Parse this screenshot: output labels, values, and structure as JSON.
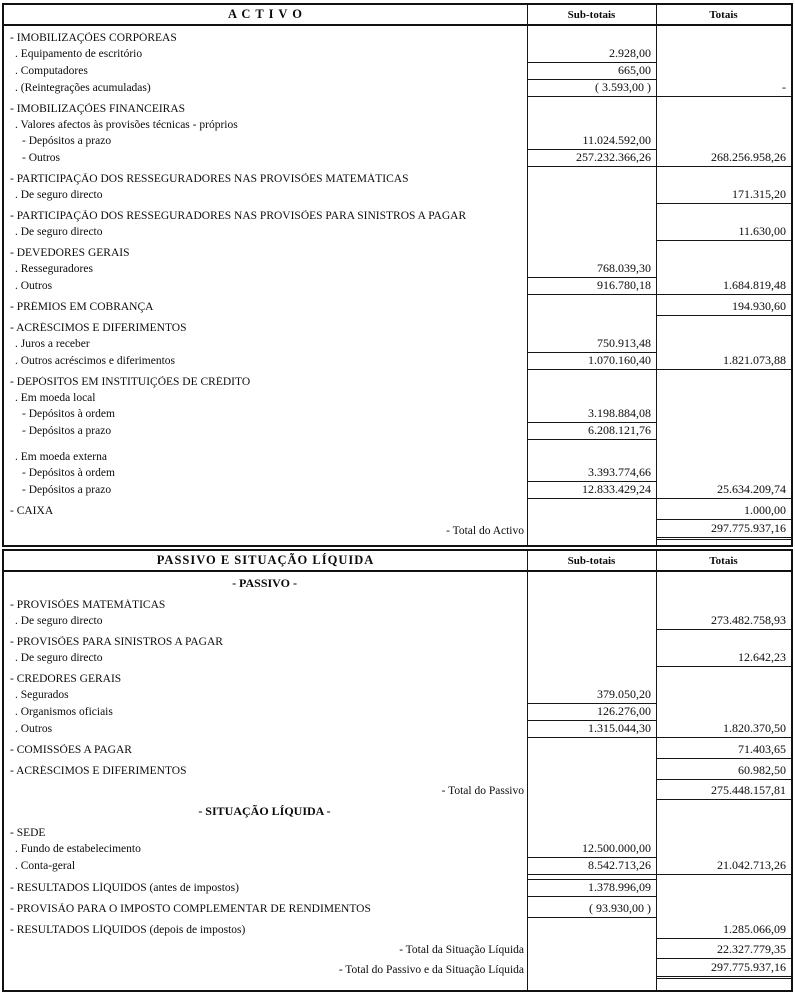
{
  "document": {
    "type": "balance-sheet-scan",
    "sections": [
      {
        "id": "activo",
        "title": "A C T I V O",
        "col_subtotals": "Sub-totais",
        "col_totals": "Totais",
        "rows": [
          {
            "kind": "section",
            "indent": 0,
            "label": "- IMOBILIZAÇÕES CORPÓREAS",
            "sub": "",
            "tot": ""
          },
          {
            "kind": "item",
            "indent": 1,
            "label": ". Equipamento de escritório",
            "sub": "2.928,00",
            "tot": "",
            "subLine": true
          },
          {
            "kind": "item",
            "indent": 1,
            "label": ". Computadores",
            "sub": "665,00",
            "tot": "",
            "subLine": true
          },
          {
            "kind": "item",
            "indent": 1,
            "label": ". (Reintegrações acumuladas)",
            "sub": "( 3.593,00 )",
            "tot": "-",
            "subLine": true,
            "totLine": true
          },
          {
            "kind": "section",
            "indent": 0,
            "label": "- IMOBILIZAÇÕES FINANCEIRAS",
            "sub": "",
            "tot": ""
          },
          {
            "kind": "item",
            "indent": 1,
            "label": ". Valores afectos às provisões técnicas - próprios",
            "sub": "",
            "tot": ""
          },
          {
            "kind": "item",
            "indent": 2,
            "label": "- Depósitos a prazo",
            "sub": "11.024.592,00",
            "tot": "",
            "subLine": true
          },
          {
            "kind": "item",
            "indent": 2,
            "label": "- Outros",
            "sub": "257.232.366,26",
            "tot": "268.256.958,26",
            "subLine": true,
            "totLine": true
          },
          {
            "kind": "section",
            "indent": 0,
            "label": "- PARTICIPAÇÃO DOS RESSEGURADORES NAS PROVISÕES MATEMÁTICAS",
            "sub": "",
            "tot": ""
          },
          {
            "kind": "item",
            "indent": 1,
            "label": ". De seguro directo",
            "sub": "",
            "tot": "171.315,20",
            "totLine": true
          },
          {
            "kind": "section",
            "indent": 0,
            "label": "- PARTICIPAÇÃO DOS RESSEGURADORES NAS PROVISÕES PARA SINISTROS A PAGAR",
            "sub": "",
            "tot": ""
          },
          {
            "kind": "item",
            "indent": 1,
            "label": ". De seguro directo",
            "sub": "",
            "tot": "11.630,00",
            "totLine": true
          },
          {
            "kind": "section",
            "indent": 0,
            "label": "- DEVEDORES GERAIS",
            "sub": "",
            "tot": ""
          },
          {
            "kind": "item",
            "indent": 1,
            "label": ". Resseguradores",
            "sub": "768.039,30",
            "tot": "",
            "subLine": true
          },
          {
            "kind": "item",
            "indent": 1,
            "label": ". Outros",
            "sub": "916.780,18",
            "tot": "1.684.819,48",
            "subLine": true,
            "totLine": true
          },
          {
            "kind": "section",
            "indent": 0,
            "label": "- PRÉMIOS EM COBRANÇA",
            "sub": "",
            "tot": "194.930,60",
            "totLine": true
          },
          {
            "kind": "section",
            "indent": 0,
            "label": "- ACRÉSCIMOS  E  DIFERIMENTOS",
            "sub": "",
            "tot": ""
          },
          {
            "kind": "item",
            "indent": 1,
            "label": ". Juros a receber",
            "sub": "750.913,48",
            "tot": "",
            "subLine": true
          },
          {
            "kind": "item",
            "indent": 1,
            "label": ". Outros acréscimos e diferimentos",
            "sub": "1.070.160,40",
            "tot": "1.821.073,88",
            "subLine": true,
            "totLine": true
          },
          {
            "kind": "section",
            "indent": 0,
            "label": "- DEPÓSITOS EM INSTITUIÇÕES DE CRÉDITO",
            "sub": "",
            "tot": ""
          },
          {
            "kind": "item",
            "indent": 1,
            "label": ". Em moeda local",
            "sub": "",
            "tot": ""
          },
          {
            "kind": "item",
            "indent": 2,
            "label": "- Depósitos à ordem",
            "sub": "3.198.884,08",
            "tot": "",
            "subLine": true
          },
          {
            "kind": "item",
            "indent": 2,
            "label": "- Depósitos a prazo",
            "sub": "6.208.121,76",
            "tot": "",
            "subLine": true
          },
          {
            "kind": "item",
            "indent": 1,
            "label": ". Em moeda externa",
            "sub": "",
            "tot": "",
            "gap": true
          },
          {
            "kind": "item",
            "indent": 2,
            "label": "- Depósitos à ordem",
            "sub": "3.393.774,66",
            "tot": "",
            "subLine": true
          },
          {
            "kind": "item",
            "indent": 2,
            "label": "- Depósitos a prazo",
            "sub": "12.833.429,24",
            "tot": "25.634.209,74",
            "subLine": true,
            "totLine": true
          },
          {
            "kind": "section",
            "indent": 0,
            "label": "- CAIXA",
            "sub": "",
            "tot": "1.000,00",
            "totLine": true
          },
          {
            "kind": "total",
            "indent": 0,
            "label": "- Total do Activo",
            "sub": "",
            "tot": "297.775.937,16",
            "totLine": true,
            "totDouble": true
          }
        ]
      },
      {
        "id": "passivo",
        "title": "PASSIVO E SITUAÇÃO  LÍQUIDA",
        "col_subtotals": "Sub-totais",
        "col_totals": "Totais",
        "rows": [
          {
            "kind": "heading",
            "indent": 0,
            "label": "- PASSIVO -",
            "sub": "",
            "tot": ""
          },
          {
            "kind": "section",
            "indent": 0,
            "label": "- PROVISÕES MATEMÁTICAS",
            "sub": "",
            "tot": ""
          },
          {
            "kind": "item",
            "indent": 1,
            "label": ". De seguro directo",
            "sub": "",
            "tot": "273.482.758,93",
            "totLine": true
          },
          {
            "kind": "section",
            "indent": 0,
            "label": "- PROVISÕES PARA SINISTROS A PAGAR",
            "sub": "",
            "tot": ""
          },
          {
            "kind": "item",
            "indent": 1,
            "label": ". De seguro directo",
            "sub": "",
            "tot": "12.642,23",
            "totLine": true
          },
          {
            "kind": "section",
            "indent": 0,
            "label": "- CREDORES GERAIS",
            "sub": "",
            "tot": ""
          },
          {
            "kind": "item",
            "indent": 1,
            "label": ". Segurados",
            "sub": "379.050,20",
            "tot": "",
            "subLine": true
          },
          {
            "kind": "item",
            "indent": 1,
            "label": ". Organismos oficiais",
            "sub": "126.276,00",
            "tot": "",
            "subLine": true
          },
          {
            "kind": "item",
            "indent": 1,
            "label": ". Outros",
            "sub": "1.315.044,30",
            "tot": "1.820.370,50",
            "subLine": true,
            "totLine": true
          },
          {
            "kind": "section",
            "indent": 0,
            "label": "- COMISSÕES A PAGAR",
            "sub": "",
            "tot": "71.403,65",
            "totLine": true
          },
          {
            "kind": "section",
            "indent": 0,
            "label": "- ACRÉSCIMOS  E  DIFERIMENTOS",
            "sub": "",
            "tot": "60.982,50",
            "totLine": true
          },
          {
            "kind": "total",
            "indent": 0,
            "label": "- Total do Passivo",
            "sub": "",
            "tot": "275.448.157,81",
            "totLine": true
          },
          {
            "kind": "heading",
            "indent": 0,
            "label": "- SITUAÇÃO LÍQUIDA -",
            "sub": "",
            "tot": ""
          },
          {
            "kind": "section",
            "indent": 0,
            "label": "- SEDE",
            "sub": "",
            "tot": ""
          },
          {
            "kind": "item",
            "indent": 1,
            "label": ". Fundo de estabelecimento",
            "sub": "12.500.000,00",
            "tot": "",
            "subLine": true
          },
          {
            "kind": "item",
            "indent": 1,
            "label": ". Conta-geral",
            "sub": "8.542.713,26",
            "tot": "21.042.713,26",
            "subLine": true,
            "totLine": true
          },
          {
            "kind": "section",
            "indent": 0,
            "label": "- RESULTADOS LÍQUIDOS (antes de impostos)",
            "sub": "1.378.996,09",
            "tot": "",
            "subLine": true,
            "subTop": true
          },
          {
            "kind": "section",
            "indent": 0,
            "label": "- PROVISÃO PARA O IMPOSTO COMPLEMENTAR DE RENDIMENTOS",
            "sub": "( 93.930,00 )",
            "tot": "",
            "subLine": true
          },
          {
            "kind": "section",
            "indent": 0,
            "label": "- RESULTADOS LÍQUIDOS (depois de impostos)",
            "sub": "",
            "tot": "1.285.066,09",
            "totLine": true
          },
          {
            "kind": "total",
            "indent": 0,
            "label": "- Total da Situação Líquida",
            "sub": "",
            "tot": "22.327.779,35",
            "totLine": true
          },
          {
            "kind": "total",
            "indent": 0,
            "label": "- Total do Passivo e da Situação Líquida",
            "sub": "",
            "tot": "297.775.937,16",
            "totLine": true,
            "totDouble": true
          }
        ]
      }
    ]
  }
}
